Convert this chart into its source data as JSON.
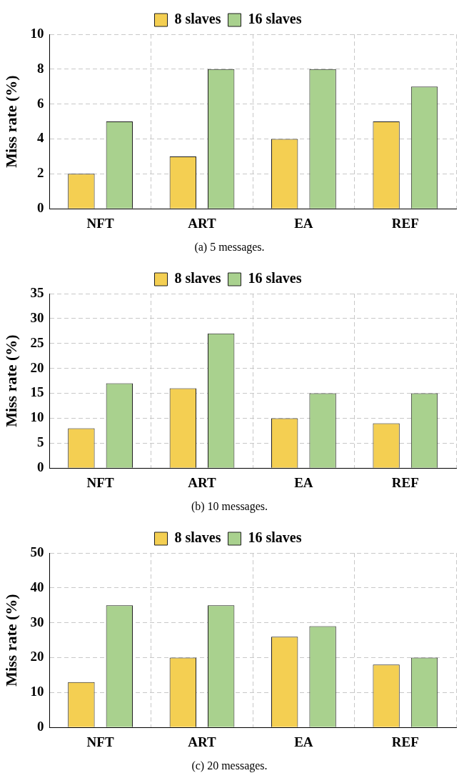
{
  "chart_data": [
    {
      "type": "bar",
      "ylabel": "Miss rate (%)",
      "annotations": [
        "(a) 5 messages."
      ],
      "categories": [
        "NFT",
        "ART",
        "EA",
        "REF"
      ],
      "ylim": [
        0,
        10
      ],
      "yticks": [
        0,
        2,
        4,
        6,
        8,
        10
      ],
      "grid": true,
      "legend": "top",
      "series": [
        {
          "name": "8 slaves",
          "color": "#f4cf52",
          "values": [
            2,
            3,
            4,
            5
          ]
        },
        {
          "name": "16 slaves",
          "color": "#a9d18e",
          "values": [
            5,
            8,
            8,
            7
          ]
        }
      ]
    },
    {
      "type": "bar",
      "ylabel": "Miss rate (%)",
      "annotations": [
        "(b) 10 messages."
      ],
      "categories": [
        "NFT",
        "ART",
        "EA",
        "REF"
      ],
      "ylim": [
        0,
        35
      ],
      "yticks": [
        0,
        5,
        10,
        15,
        20,
        25,
        30,
        35
      ],
      "grid": true,
      "legend": "top",
      "series": [
        {
          "name": "8 slaves",
          "color": "#f4cf52",
          "values": [
            8,
            16,
            10,
            9
          ]
        },
        {
          "name": "16 slaves",
          "color": "#a9d18e",
          "values": [
            17,
            27,
            15,
            15
          ]
        }
      ]
    },
    {
      "type": "bar",
      "ylabel": "Miss rate (%)",
      "annotations": [
        "(c) 20 messages."
      ],
      "categories": [
        "NFT",
        "ART",
        "EA",
        "REF"
      ],
      "ylim": [
        0,
        50
      ],
      "yticks": [
        0,
        10,
        20,
        30,
        40,
        50
      ],
      "grid": true,
      "legend": "top",
      "series": [
        {
          "name": "8 slaves",
          "color": "#f4cf52",
          "values": [
            13,
            20,
            26,
            18
          ]
        },
        {
          "name": "16 slaves",
          "color": "#a9d18e",
          "values": [
            35,
            35,
            29,
            20
          ]
        }
      ]
    }
  ]
}
